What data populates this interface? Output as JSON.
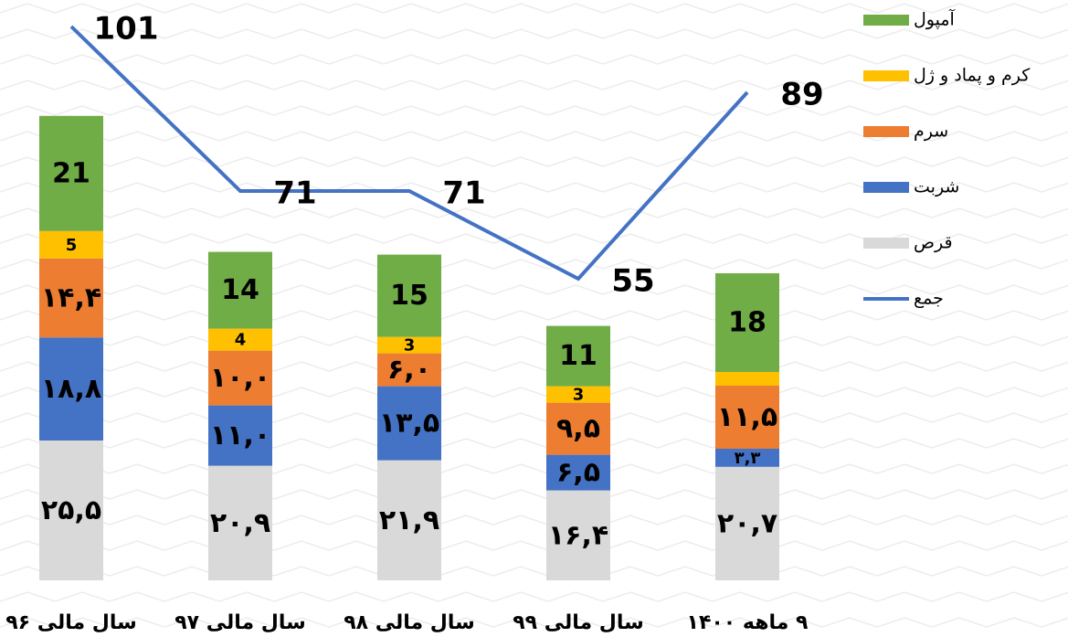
{
  "chart_data": {
    "type": "bar",
    "categories": [
      "سال مالی ۹۶",
      "سال مالی ۹۷",
      "سال مالی ۹۸",
      "سال مالی ۹۹",
      "۹ ماهه ۱۴۰۰"
    ],
    "stacked": true,
    "ylim": [
      0,
      105
    ],
    "series": [
      {
        "name": "قرص",
        "color": "#d9d9d9",
        "values": [
          25.5,
          20.9,
          21.9,
          16.4,
          20.7
        ],
        "value_labels": [
          "۲۵,۵",
          "۲۰,۹",
          "۲۱,۹",
          "۱۶,۴",
          "۲۰,۷"
        ]
      },
      {
        "name": "شربت",
        "color": "#4472c4",
        "values": [
          18.8,
          11.0,
          13.5,
          6.5,
          3.3
        ],
        "value_labels": [
          "۱۸,۸",
          "۱۱,۰",
          "۱۳,۵",
          "۶,۵",
          "۳,۳"
        ]
      },
      {
        "name": "سرم",
        "color": "#ed7d31",
        "values": [
          14.4,
          10.0,
          6.0,
          9.5,
          11.5
        ],
        "value_labels": [
          "۱۴,۴",
          "۱۰,۰",
          "۶,۰",
          "۹,۵",
          "۱۱,۵"
        ]
      },
      {
        "name": "کرم و پماد و ژل",
        "color": "#ffc000",
        "values": [
          5,
          4,
          3,
          3,
          2.5
        ],
        "value_labels": [
          "5",
          "4",
          "3",
          "3",
          null
        ]
      },
      {
        "name": "آمپول",
        "color": "#70ad47",
        "values": [
          21,
          14,
          15,
          11,
          18
        ]
      },
      {
        "name": "جمع",
        "type": "line",
        "color": "#4472c4",
        "values": [
          101,
          71,
          71,
          55,
          89
        ]
      }
    ]
  }
}
